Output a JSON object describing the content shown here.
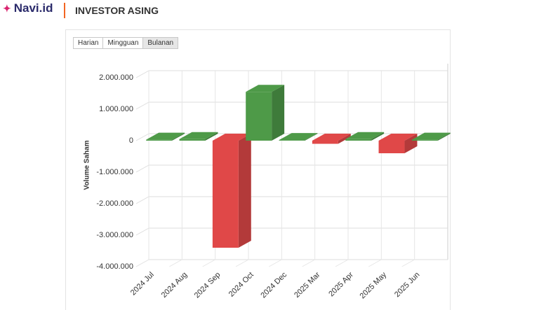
{
  "header": {
    "logo": "Navi.id",
    "title": "INVESTOR ASING"
  },
  "tabs": [
    "Harian",
    "Mingguan",
    "Bulanan"
  ],
  "chart_data": {
    "type": "bar3d",
    "y_label": "Volume Saham",
    "categories": [
      "2024 Jul",
      "2024 Aug",
      "2024 Sep",
      "2024 Oct",
      "2024 Dec",
      "2025 Mar",
      "2025 Apr",
      "2025 May",
      "2025 Jun"
    ],
    "values": [
      30000,
      50000,
      -3400000,
      1550000,
      20000,
      -100000,
      50000,
      -400000,
      30000
    ],
    "colors": [
      "#4e9a48",
      "#4e9a48",
      "#e04848",
      "#4e9a48",
      "#4e9a48",
      "#e04848",
      "#4e9a48",
      "#e04848",
      "#4e9a48"
    ],
    "ylim": [
      -4000000,
      2000000
    ],
    "yticks": [
      {
        "value": -4000000,
        "label": "-4.000.000"
      },
      {
        "value": -3000000,
        "label": "-3.000.000"
      },
      {
        "value": -2000000,
        "label": "-2.000.000"
      },
      {
        "value": -1000000,
        "label": "-1.000.000"
      },
      0,
      {
        "value": 1000000,
        "label": "1.000.000"
      },
      {
        "value": 2000000,
        "label": "2.000.000"
      }
    ],
    "grid": true
  }
}
